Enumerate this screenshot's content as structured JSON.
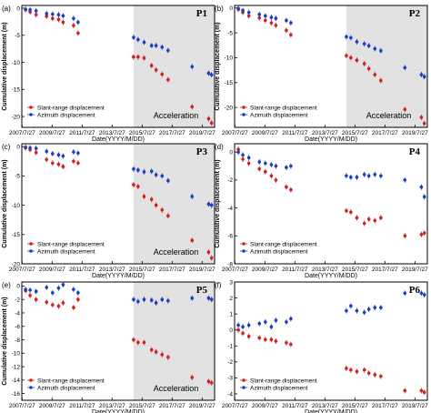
{
  "figure": {
    "shared_xlabel": "Date(YYYY/M/DD)",
    "shared_ylabel": "Cumulative displacement (m)",
    "x_tick_labels": [
      "2007/7/27",
      "2009/7/27",
      "2011/7/27",
      "2013/7/27",
      "2015/7/27",
      "2017/7/27",
      "2019/7/27"
    ],
    "colors": {
      "slant": "#d42020",
      "azimuth": "#1a3fc4",
      "shade": "#e2e2e2"
    }
  },
  "chart_data": [
    {
      "panel": "(a)",
      "title": "P1",
      "type": "scatter",
      "xlim": [
        2007.55,
        2020.4
      ],
      "ylim": [
        -22,
        0.5
      ],
      "yticks": [
        0,
        -5,
        -10,
        -15,
        -20
      ],
      "xlabel": "Date(YYYY/M/DD)",
      "ylabel": "Cumulative displacement (m)",
      "shaded_region": {
        "x": [
          2015.0,
          2020.4
        ],
        "label": "Acceleration"
      },
      "legend_position": "bottom-left",
      "series": [
        {
          "name": "Slant-range displacement",
          "color": "#d42020",
          "x": [
            2007.8,
            2008.1,
            2008.5,
            2009.2,
            2009.6,
            2010.0,
            2010.3,
            2011.0,
            2011.3,
            2015.0,
            2015.3,
            2015.7,
            2016.2,
            2016.5,
            2016.9,
            2017.3,
            2018.9,
            2020.0,
            2020.2
          ],
          "y": [
            -0.3,
            -0.7,
            -1.2,
            -1.5,
            -1.9,
            -2.1,
            -2.6,
            -3.2,
            -4.6,
            -9.0,
            -9.0,
            -9.2,
            -10.6,
            -11.4,
            -12.2,
            -13.2,
            -18.2,
            -20.4,
            -21.2
          ]
        },
        {
          "name": "Azimuth displacement",
          "color": "#1a3fc4",
          "x": [
            2007.8,
            2008.1,
            2008.5,
            2009.2,
            2009.6,
            2010.0,
            2010.3,
            2011.0,
            2011.3,
            2015.0,
            2015.3,
            2015.7,
            2016.2,
            2016.5,
            2016.9,
            2017.3,
            2018.9,
            2020.0,
            2020.2
          ],
          "y": [
            -0.2,
            -0.3,
            -0.5,
            -1.0,
            -1.1,
            -1.2,
            -1.4,
            -1.9,
            -2.6,
            -5.4,
            -5.8,
            -6.3,
            -6.9,
            -6.9,
            -7.2,
            -7.8,
            -10.8,
            -12.0,
            -12.3
          ]
        }
      ]
    },
    {
      "panel": "(b)",
      "title": "P2",
      "type": "scatter",
      "xlim": [
        2007.55,
        2020.4
      ],
      "ylim": [
        -24,
        0.5
      ],
      "yticks": [
        0,
        -5,
        -10,
        -15,
        -20
      ],
      "xlabel": "Date(YYYY/M/DD)",
      "ylabel": "Cumulative displacement (m)",
      "shaded_region": {
        "x": [
          2015.0,
          2020.4
        ],
        "label": "Acceleration"
      },
      "legend_position": "bottom-left",
      "series": [
        {
          "name": "Slant-range displacement",
          "color": "#d42020",
          "x": [
            2007.8,
            2008.1,
            2008.5,
            2009.2,
            2009.6,
            2010.0,
            2010.3,
            2011.0,
            2011.3,
            2015.0,
            2015.3,
            2015.7,
            2016.2,
            2016.5,
            2016.9,
            2017.3,
            2018.9,
            2020.0,
            2020.2
          ],
          "y": [
            -0.3,
            -0.9,
            -1.6,
            -2.0,
            -2.5,
            -3.0,
            -3.5,
            -4.5,
            -5.4,
            -9.6,
            -10.0,
            -10.5,
            -11.2,
            -12.2,
            -13.4,
            -14.6,
            -20.4,
            -22.0,
            -23.2
          ]
        },
        {
          "name": "Azimuth displacement",
          "color": "#1a3fc4",
          "x": [
            2007.8,
            2008.1,
            2008.5,
            2009.2,
            2009.6,
            2010.0,
            2010.3,
            2011.0,
            2011.3,
            2015.0,
            2015.3,
            2015.7,
            2016.2,
            2016.5,
            2016.9,
            2017.3,
            2018.9,
            2020.0,
            2020.2
          ],
          "y": [
            -0.1,
            -0.5,
            -0.9,
            -1.3,
            -1.6,
            -1.9,
            -2.1,
            -2.5,
            -3.0,
            -5.8,
            -6.0,
            -6.8,
            -7.2,
            -7.6,
            -8.2,
            -8.6,
            -12.0,
            -13.4,
            -13.8
          ]
        }
      ]
    },
    {
      "panel": "(c)",
      "title": "P3",
      "type": "scatter",
      "xlim": [
        2007.55,
        2020.4
      ],
      "ylim": [
        -20,
        0.5
      ],
      "yticks": [
        0,
        -5,
        -10,
        -15,
        -20
      ],
      "xlabel": "Date(YYYY/M/DD)",
      "ylabel": "Cumulative displacement (m)",
      "shaded_region": {
        "x": [
          2015.0,
          2020.4
        ],
        "label": "Acceleration"
      },
      "legend_position": "bottom-left",
      "series": [
        {
          "name": "Slant-range displacement",
          "color": "#d42020",
          "x": [
            2007.8,
            2008.1,
            2008.5,
            2009.2,
            2009.6,
            2010.0,
            2010.3,
            2011.0,
            2011.3,
            2015.0,
            2015.3,
            2015.7,
            2016.2,
            2016.5,
            2016.9,
            2017.3,
            2018.9,
            2020.0,
            2020.2
          ],
          "y": [
            -0.2,
            -0.5,
            -1.0,
            -2.2,
            -2.8,
            -3.0,
            -3.4,
            -2.5,
            -2.8,
            -6.5,
            -6.8,
            -8.5,
            -9.0,
            -10.0,
            -10.8,
            -11.8,
            -16.0,
            -18.0,
            -19.0
          ]
        },
        {
          "name": "Azimuth displacement",
          "color": "#1a3fc4",
          "x": [
            2007.8,
            2008.1,
            2008.5,
            2009.2,
            2009.6,
            2010.0,
            2010.3,
            2011.0,
            2011.3,
            2015.0,
            2015.3,
            2015.7,
            2016.2,
            2016.5,
            2016.9,
            2017.3,
            2018.9,
            2020.0,
            2020.2
          ],
          "y": [
            -0.1,
            -0.2,
            -0.3,
            -0.8,
            -1.2,
            -1.4,
            -1.6,
            -0.9,
            -1.1,
            -3.8,
            -4.0,
            -4.3,
            -4.2,
            -4.8,
            -5.0,
            -5.8,
            -8.5,
            -9.8,
            -10.0
          ]
        }
      ]
    },
    {
      "panel": "(d)",
      "title": "P4",
      "type": "scatter",
      "xlim": [
        2007.55,
        2020.4
      ],
      "ylim": [
        -8,
        0.6
      ],
      "yticks": [
        0,
        -2,
        -4,
        -6,
        -8
      ],
      "xlabel": "Date(YYYY/M/DD)",
      "ylabel": "Cumulative displacement (m)",
      "shaded_region": null,
      "legend_position": "bottom-left",
      "series": [
        {
          "name": "Slant-range displacement",
          "color": "#d42020",
          "x": [
            2007.8,
            2008.1,
            2008.5,
            2009.2,
            2009.6,
            2010.0,
            2010.3,
            2011.0,
            2011.3,
            2015.0,
            2015.3,
            2015.7,
            2016.2,
            2016.5,
            2016.9,
            2017.3,
            2018.9,
            2020.0,
            2020.2
          ],
          "y": [
            0.2,
            -0.5,
            -0.8,
            -1.2,
            -1.4,
            -1.7,
            -2.0,
            -2.5,
            -2.7,
            -4.2,
            -4.3,
            -4.7,
            -5.1,
            -4.8,
            -4.9,
            -4.7,
            -6.0,
            -5.9,
            -5.8
          ]
        },
        {
          "name": "Azimuth displacement",
          "color": "#1a3fc4",
          "x": [
            2007.8,
            2008.1,
            2008.5,
            2009.2,
            2009.6,
            2010.0,
            2010.3,
            2011.0,
            2011.3,
            2015.0,
            2015.3,
            2015.7,
            2016.2,
            2016.5,
            2016.9,
            2017.3,
            2018.9,
            2020.0,
            2020.2
          ],
          "y": [
            0.0,
            -0.2,
            -0.4,
            -0.7,
            -0.8,
            -0.9,
            -1.0,
            -1.1,
            -1.0,
            -1.7,
            -1.8,
            -1.8,
            -1.6,
            -1.7,
            -1.6,
            -1.7,
            -2.0,
            -2.5,
            -3.2
          ]
        }
      ]
    },
    {
      "panel": "(e)",
      "title": "P5",
      "type": "scatter",
      "xlim": [
        2007.55,
        2020.4
      ],
      "ylim": [
        -17,
        0.6
      ],
      "yticks": [
        0,
        -2,
        -4,
        -6,
        -8,
        -10,
        -12,
        -14,
        -16
      ],
      "xlabel": "Date(YYYY/M/DD)",
      "ylabel": "Cumulative displacement (m)",
      "shaded_region": {
        "x": [
          2015.0,
          2020.4
        ],
        "label": "Acceleration"
      },
      "legend_position": "bottom-left",
      "series": [
        {
          "name": "Slant-range displacement",
          "color": "#d42020",
          "x": [
            2007.8,
            2008.1,
            2008.5,
            2009.2,
            2009.6,
            2010.0,
            2010.3,
            2011.0,
            2011.3,
            2015.0,
            2015.3,
            2015.7,
            2016.2,
            2016.5,
            2016.9,
            2017.3,
            2018.9,
            2020.0,
            2020.2
          ],
          "y": [
            -0.7,
            -1.4,
            -2.0,
            -2.4,
            -2.8,
            -3.0,
            -2.5,
            -3.2,
            -2.0,
            -8.0,
            -8.4,
            -8.4,
            -9.5,
            -9.8,
            -10.2,
            -10.6,
            -13.6,
            -14.2,
            -14.4
          ]
        },
        {
          "name": "Azimuth displacement",
          "color": "#1a3fc4",
          "x": [
            2007.8,
            2008.1,
            2008.5,
            2009.2,
            2009.6,
            2010.0,
            2010.3,
            2011.0,
            2011.3,
            2015.0,
            2015.3,
            2015.7,
            2016.2,
            2016.5,
            2016.9,
            2017.3,
            2018.9,
            2020.0,
            2020.2
          ],
          "y": [
            -0.5,
            -0.6,
            -0.8,
            -0.2,
            -1.0,
            -0.3,
            0.2,
            -0.5,
            -1.0,
            -2.0,
            -2.3,
            -2.0,
            -2.1,
            -2.5,
            -2.0,
            -2.2,
            -1.8,
            -1.8,
            -2.0
          ]
        }
      ]
    },
    {
      "panel": "(f)",
      "title": "P6",
      "type": "scatter",
      "xlim": [
        2007.55,
        2020.4
      ],
      "ylim": [
        -4.4,
        3.0
      ],
      "yticks": [
        3,
        2,
        1,
        0,
        -1,
        -2,
        -3,
        -4
      ],
      "xlabel": "Date(YYYY/M/DD)",
      "ylabel": "",
      "shaded_region": null,
      "legend_position": "bottom-left",
      "series": [
        {
          "name": "Slant-range displacement",
          "color": "#d42020",
          "x": [
            2007.8,
            2008.1,
            2008.5,
            2009.2,
            2009.6,
            2010.0,
            2010.3,
            2011.0,
            2011.3,
            2015.0,
            2015.3,
            2015.7,
            2016.2,
            2016.5,
            2016.9,
            2017.3,
            2018.9,
            2020.0,
            2020.2
          ],
          "y": [
            0.0,
            -0.2,
            -0.4,
            -0.5,
            -0.6,
            -0.6,
            -0.7,
            -0.8,
            -0.9,
            -2.4,
            -2.5,
            -2.6,
            -2.5,
            -2.7,
            -2.8,
            -2.9,
            -3.8,
            -3.8,
            -3.9
          ]
        },
        {
          "name": "Azimuth displacement",
          "color": "#1a3fc4",
          "x": [
            2007.8,
            2008.1,
            2008.5,
            2009.2,
            2009.6,
            2010.0,
            2010.3,
            2011.0,
            2011.3,
            2015.0,
            2015.3,
            2015.7,
            2016.2,
            2016.5,
            2016.9,
            2017.3,
            2018.9,
            2020.0,
            2020.2
          ],
          "y": [
            0.3,
            0.2,
            0.3,
            0.4,
            0.5,
            0.2,
            0.6,
            0.5,
            0.7,
            1.2,
            1.5,
            1.2,
            1.1,
            1.3,
            1.4,
            1.4,
            2.3,
            2.3,
            2.2
          ]
        }
      ]
    }
  ]
}
